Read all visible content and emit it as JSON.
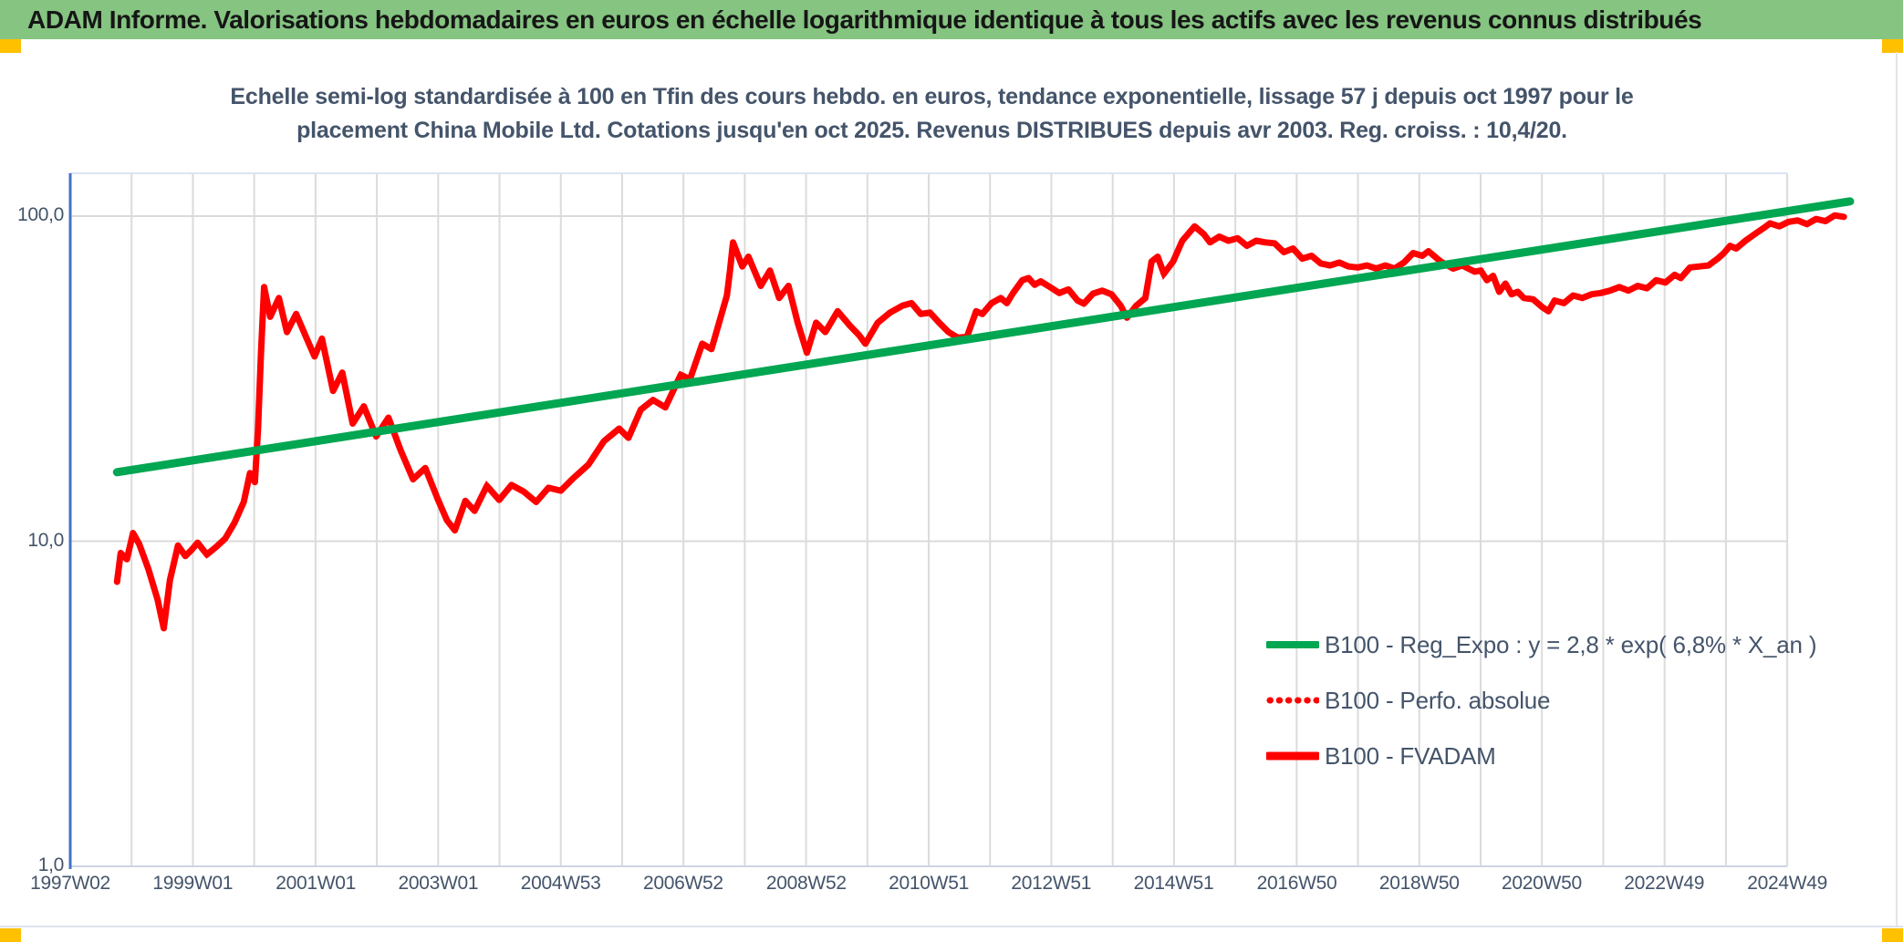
{
  "header": {
    "title": "ADAM Informe. Valorisations hebdomadaires en euros en échelle logarithmique identique à tous les actifs avec les revenus connus distribués",
    "bg": "#85C481",
    "text_color": "#161616",
    "corner_marker_color": "#FFC000"
  },
  "chart_data": {
    "type": "line",
    "title_lines": [
      "Echelle semi-log standardisée à 100 en Tfin des cours hebdo. en euros, tendance exponentielle, lissage 57 j depuis oct 1997 pour le",
      "placement China Mobile Ltd. Cotations jusqu'en oct 2025. Revenus DISTRIBUES depuis avr 2003. Reg. croiss. : 10,4/20."
    ],
    "title_color": "#44546A",
    "y_scale": "log",
    "ylim": [
      1,
      135
    ],
    "grid": true,
    "grid_color": "#dbdbdb",
    "axis_line_color": "#4472C4",
    "tick_text_color": "#44546A",
    "y_ticks": [
      {
        "label": "100,0",
        "value": 100
      },
      {
        "label": "10,0",
        "value": 10
      },
      {
        "label": "1,0",
        "value": 1
      }
    ],
    "x_unit": "ISO week labels (yearWweek), one gridline per year, label every 2 years",
    "x_gridline_start_year": 1997.03,
    "x_gridline_step_years": 0.9964,
    "x_gridline_count": 29,
    "x_ticks": [
      {
        "label": "1997W02",
        "year": 1997.03
      },
      {
        "label": "1999W01",
        "year": 1999.02
      },
      {
        "label": "2001W01",
        "year": 2001.02
      },
      {
        "label": "2003W01",
        "year": 2003.01
      },
      {
        "label": "2004W53",
        "year": 2005.0
      },
      {
        "label": "2006W52",
        "year": 2006.99
      },
      {
        "label": "2008W52",
        "year": 2008.99
      },
      {
        "label": "2010W51",
        "year": 2010.98
      },
      {
        "label": "2012W51",
        "year": 2012.97
      },
      {
        "label": "2014W51",
        "year": 2014.96
      },
      {
        "label": "2016W50",
        "year": 2016.96
      },
      {
        "label": "2018W50",
        "year": 2018.95
      },
      {
        "label": "2020W50",
        "year": 2020.94
      },
      {
        "label": "2022W49",
        "year": 2022.93
      },
      {
        "label": "2024W49",
        "year": 2024.93
      }
    ],
    "legend": {
      "position": "inside bottom-right",
      "text_color": "#44546A"
    },
    "series": [
      {
        "name": "B100 - Reg_Expo : y = 2,8 * exp( 6,8% * X_an )",
        "color": "#00A651",
        "style": "solid",
        "width": 9,
        "points": [
          [
            1997.79,
            16.3
          ],
          [
            2025.95,
            111
          ]
        ]
      },
      {
        "name": "B100 - Perfo. absolue",
        "color": "#FF0000",
        "style": "dotted",
        "width": 6.5,
        "coincides_with": "B100 - FVADAM"
      },
      {
        "name": "B100 - FVADAM",
        "color": "#FF0000",
        "style": "solid",
        "width": 7,
        "points": [
          [
            1997.79,
            7.5
          ],
          [
            1997.85,
            9.2
          ],
          [
            1997.95,
            8.8
          ],
          [
            1998.05,
            10.6
          ],
          [
            1998.15,
            9.8
          ],
          [
            1998.3,
            8.2
          ],
          [
            1998.45,
            6.6
          ],
          [
            1998.55,
            5.4
          ],
          [
            1998.65,
            7.6
          ],
          [
            1998.78,
            9.7
          ],
          [
            1998.9,
            9.0
          ],
          [
            1999.0,
            9.4
          ],
          [
            1999.1,
            9.9
          ],
          [
            1999.25,
            9.1
          ],
          [
            1999.4,
            9.6
          ],
          [
            1999.55,
            10.2
          ],
          [
            1999.7,
            11.4
          ],
          [
            1999.85,
            13.2
          ],
          [
            1999.95,
            16.2
          ],
          [
            2000.03,
            15.2
          ],
          [
            2000.08,
            22
          ],
          [
            2000.13,
            38
          ],
          [
            2000.18,
            60.5
          ],
          [
            2000.28,
            49
          ],
          [
            2000.42,
            56
          ],
          [
            2000.55,
            44
          ],
          [
            2000.7,
            50
          ],
          [
            2000.85,
            43
          ],
          [
            2001.0,
            37
          ],
          [
            2001.12,
            42
          ],
          [
            2001.3,
            29
          ],
          [
            2001.45,
            33
          ],
          [
            2001.62,
            23
          ],
          [
            2001.8,
            26
          ],
          [
            2002.0,
            21
          ],
          [
            2002.2,
            24
          ],
          [
            2002.4,
            19
          ],
          [
            2002.6,
            15.5
          ],
          [
            2002.8,
            16.8
          ],
          [
            2003.0,
            13.5
          ],
          [
            2003.15,
            11.6
          ],
          [
            2003.28,
            10.8
          ],
          [
            2003.45,
            13.3
          ],
          [
            2003.6,
            12.4
          ],
          [
            2003.8,
            14.8
          ],
          [
            2004.0,
            13.4
          ],
          [
            2004.2,
            14.9
          ],
          [
            2004.4,
            14.2
          ],
          [
            2004.6,
            13.2
          ],
          [
            2004.8,
            14.6
          ],
          [
            2005.0,
            14.3
          ],
          [
            2005.2,
            15.6
          ],
          [
            2005.45,
            17.2
          ],
          [
            2005.7,
            20.3
          ],
          [
            2005.95,
            22.2
          ],
          [
            2006.1,
            20.8
          ],
          [
            2006.3,
            25.4
          ],
          [
            2006.5,
            27.2
          ],
          [
            2006.7,
            25.8
          ],
          [
            2006.95,
            32.5
          ],
          [
            2007.1,
            31.5
          ],
          [
            2007.3,
            40.5
          ],
          [
            2007.45,
            39
          ],
          [
            2007.6,
            49
          ],
          [
            2007.7,
            57
          ],
          [
            2007.75,
            68
          ],
          [
            2007.8,
            83
          ],
          [
            2007.95,
            70
          ],
          [
            2008.05,
            75
          ],
          [
            2008.25,
            61
          ],
          [
            2008.4,
            68
          ],
          [
            2008.55,
            56
          ],
          [
            2008.7,
            61
          ],
          [
            2008.85,
            47
          ],
          [
            2009.0,
            38
          ],
          [
            2009.15,
            47
          ],
          [
            2009.3,
            44
          ],
          [
            2009.5,
            51
          ],
          [
            2009.7,
            46
          ],
          [
            2009.85,
            43
          ],
          [
            2009.95,
            40.5
          ],
          [
            2010.15,
            47
          ],
          [
            2010.35,
            50.5
          ],
          [
            2010.55,
            53
          ],
          [
            2010.7,
            54
          ],
          [
            2010.85,
            50
          ],
          [
            2011.0,
            50.5
          ],
          [
            2011.15,
            47
          ],
          [
            2011.3,
            44
          ],
          [
            2011.45,
            42.3
          ],
          [
            2011.6,
            42.5
          ],
          [
            2011.75,
            51
          ],
          [
            2011.85,
            50
          ],
          [
            2012.0,
            54
          ],
          [
            2012.15,
            56
          ],
          [
            2012.25,
            54
          ],
          [
            2012.35,
            58
          ],
          [
            2012.5,
            63.5
          ],
          [
            2012.6,
            64.5
          ],
          [
            2012.7,
            61.5
          ],
          [
            2012.8,
            63
          ],
          [
            2012.95,
            60.5
          ],
          [
            2013.1,
            58
          ],
          [
            2013.25,
            59.5
          ],
          [
            2013.4,
            55
          ],
          [
            2013.5,
            53.8
          ],
          [
            2013.65,
            57.8
          ],
          [
            2013.8,
            59
          ],
          [
            2013.95,
            57.5
          ],
          [
            2014.1,
            53
          ],
          [
            2014.2,
            48.7
          ],
          [
            2014.35,
            53
          ],
          [
            2014.5,
            56
          ],
          [
            2014.6,
            72.5
          ],
          [
            2014.7,
            75
          ],
          [
            2014.8,
            66.5
          ],
          [
            2014.95,
            72.5
          ],
          [
            2015.1,
            84
          ],
          [
            2015.3,
            93
          ],
          [
            2015.45,
            88
          ],
          [
            2015.55,
            83
          ],
          [
            2015.7,
            86.5
          ],
          [
            2015.85,
            84
          ],
          [
            2016.0,
            85.5
          ],
          [
            2016.15,
            81
          ],
          [
            2016.3,
            84
          ],
          [
            2016.45,
            83
          ],
          [
            2016.6,
            82.5
          ],
          [
            2016.75,
            77.5
          ],
          [
            2016.9,
            79.5
          ],
          [
            2017.05,
            74
          ],
          [
            2017.2,
            75.5
          ],
          [
            2017.35,
            71.5
          ],
          [
            2017.5,
            70.5
          ],
          [
            2017.65,
            72
          ],
          [
            2017.8,
            70
          ],
          [
            2017.95,
            69.5
          ],
          [
            2018.1,
            70.5
          ],
          [
            2018.25,
            69
          ],
          [
            2018.4,
            70.5
          ],
          [
            2018.55,
            69
          ],
          [
            2018.7,
            72
          ],
          [
            2018.85,
            77
          ],
          [
            2019.0,
            75.5
          ],
          [
            2019.1,
            78
          ],
          [
            2019.3,
            72.5
          ],
          [
            2019.5,
            69
          ],
          [
            2019.65,
            70.5
          ],
          [
            2019.85,
            67.5
          ],
          [
            2019.95,
            68
          ],
          [
            2020.05,
            63.5
          ],
          [
            2020.15,
            65.5
          ],
          [
            2020.25,
            58.5
          ],
          [
            2020.35,
            62
          ],
          [
            2020.45,
            57.5
          ],
          [
            2020.55,
            58.5
          ],
          [
            2020.65,
            56
          ],
          [
            2020.8,
            55.5
          ],
          [
            2020.95,
            52.5
          ],
          [
            2021.05,
            51
          ],
          [
            2021.15,
            55
          ],
          [
            2021.3,
            54
          ],
          [
            2021.45,
            57
          ],
          [
            2021.6,
            56
          ],
          [
            2021.75,
            57.5
          ],
          [
            2021.9,
            58
          ],
          [
            2022.05,
            59
          ],
          [
            2022.2,
            60.5
          ],
          [
            2022.35,
            59
          ],
          [
            2022.5,
            61
          ],
          [
            2022.65,
            60
          ],
          [
            2022.8,
            63.5
          ],
          [
            2022.95,
            62.5
          ],
          [
            2023.1,
            66
          ],
          [
            2023.2,
            64.5
          ],
          [
            2023.35,
            69.5
          ],
          [
            2023.5,
            70
          ],
          [
            2023.65,
            70.5
          ],
          [
            2023.8,
            74
          ],
          [
            2023.9,
            77
          ],
          [
            2024.0,
            81
          ],
          [
            2024.1,
            79.5
          ],
          [
            2024.25,
            84
          ],
          [
            2024.4,
            88
          ],
          [
            2024.55,
            92
          ],
          [
            2024.65,
            95
          ],
          [
            2024.8,
            93
          ],
          [
            2024.95,
            96
          ],
          [
            2025.1,
            97
          ],
          [
            2025.25,
            94.5
          ],
          [
            2025.4,
            98
          ],
          [
            2025.55,
            96.5
          ],
          [
            2025.7,
            100.5
          ],
          [
            2025.85,
            99.5
          ]
        ]
      }
    ]
  }
}
